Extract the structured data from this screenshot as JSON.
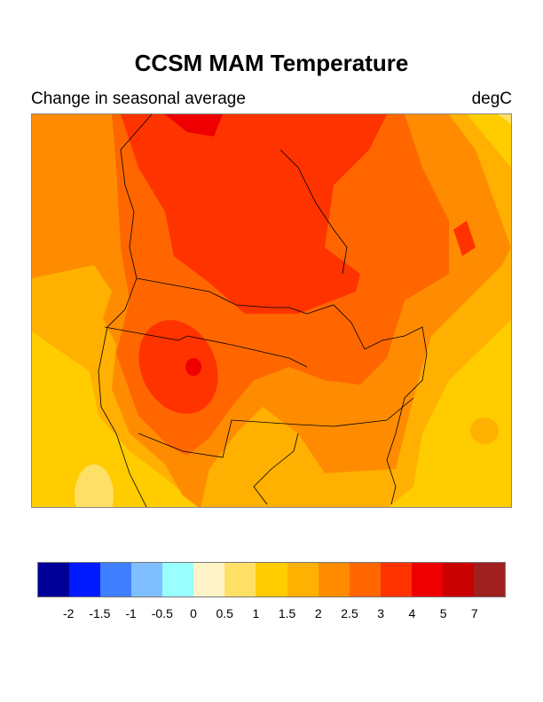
{
  "title": "CCSM MAM Temperature",
  "subtitle": "Change in seasonal average",
  "units": "degC",
  "colorbar": {
    "colors": [
      "#000099",
      "#0019ff",
      "#3f7fff",
      "#80bfff",
      "#99ffff",
      "#fff3c8",
      "#ffe066",
      "#ffcc00",
      "#ffb000",
      "#ff8c00",
      "#ff6600",
      "#ff3300",
      "#ee0000",
      "#c80000",
      "#a02020"
    ],
    "labels": [
      "-2",
      "-1.5",
      "-1",
      "-0.5",
      "0",
      "0.5",
      "1",
      "1.5",
      "2",
      "2.5",
      "3",
      "4",
      "5",
      "7"
    ]
  }
}
